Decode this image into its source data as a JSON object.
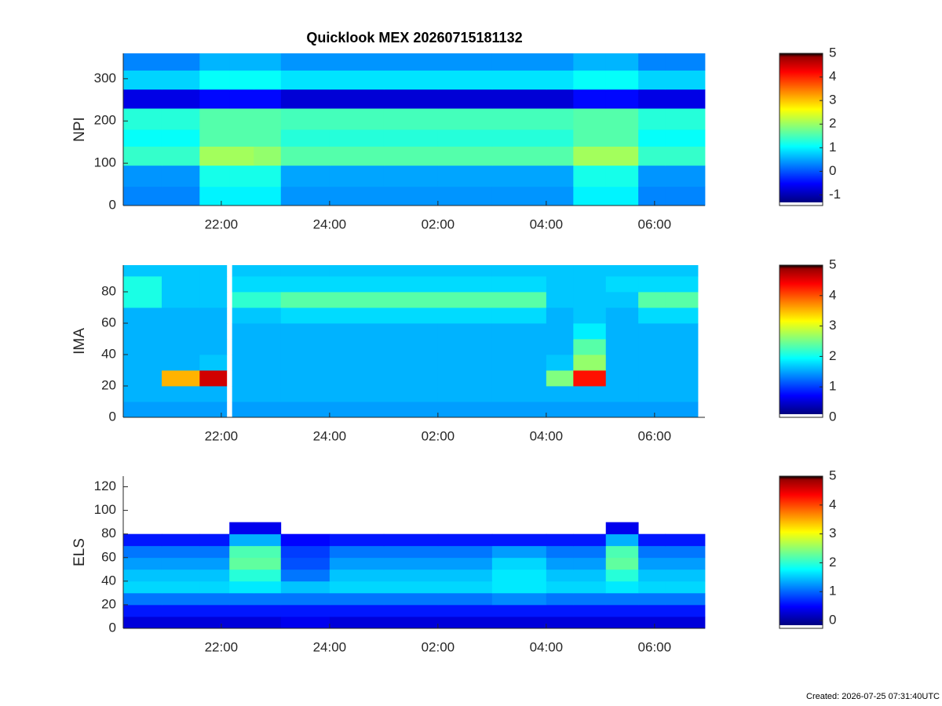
{
  "footnote": "Created: 2026-07-25 07:31:40UTC",
  "chart_data": [
    {
      "type": "heatmap",
      "title": "Quicklook MEX 20260715181132",
      "ylabel": "NPI",
      "colormap": "jet",
      "xlim": [
        20.19,
        30.93
      ],
      "ylim": [
        0,
        360
      ],
      "clim": [
        -1.45,
        5
      ],
      "xticks": [
        {
          "value": 22,
          "label": "22:00"
        },
        {
          "value": 24,
          "label": "24:00"
        },
        {
          "value": 26,
          "label": "02:00"
        },
        {
          "value": 28,
          "label": "04:00"
        },
        {
          "value": 30,
          "label": "06:00"
        }
      ],
      "yticks": [
        0,
        100,
        200,
        300
      ],
      "cticks": [
        -1,
        0,
        1,
        2,
        3,
        4,
        5
      ],
      "x_bins": [
        20.19,
        20.9,
        21.6,
        22.15,
        22.6,
        23.1,
        24,
        25,
        26,
        27,
        28,
        28.5,
        29.1,
        29.7,
        30.2,
        30.93
      ],
      "y_bins": [
        0,
        45,
        95,
        140,
        180,
        230,
        275,
        320,
        360
      ],
      "z": [
        [
          0.2,
          0.2,
          0.9,
          0.9,
          0.9,
          0.3,
          0.3,
          0.3,
          0.3,
          0.3,
          0.3,
          0.9,
          0.9,
          0.2,
          0.2
        ],
        [
          0.3,
          0.3,
          1.1,
          1.1,
          1.1,
          0.4,
          0.4,
          0.4,
          0.4,
          0.4,
          0.4,
          1.1,
          1.1,
          0.3,
          0.3
        ],
        [
          1.3,
          1.3,
          2.0,
          2.0,
          1.9,
          1.5,
          1.5,
          1.5,
          1.5,
          1.5,
          1.5,
          2.0,
          2.0,
          1.3,
          1.3
        ],
        [
          1.0,
          1.0,
          1.5,
          1.5,
          1.5,
          1.2,
          1.2,
          1.2,
          1.2,
          1.2,
          1.2,
          1.5,
          1.5,
          1.0,
          1.0
        ],
        [
          1.2,
          1.2,
          1.5,
          1.5,
          1.5,
          1.4,
          1.4,
          1.4,
          1.4,
          1.4,
          1.4,
          1.5,
          1.5,
          1.2,
          1.2
        ],
        [
          -0.8,
          -0.8,
          -0.6,
          -0.6,
          -0.6,
          -0.9,
          -0.9,
          -0.9,
          -0.9,
          -0.9,
          -0.9,
          -0.6,
          -0.6,
          -0.8,
          -0.8
        ],
        [
          0.7,
          0.7,
          1.0,
          1.0,
          1.0,
          0.8,
          0.8,
          0.8,
          0.8,
          0.8,
          0.8,
          1.0,
          1.0,
          0.7,
          0.7
        ],
        [
          0.2,
          0.2,
          0.5,
          0.5,
          0.5,
          0.3,
          0.3,
          0.3,
          0.3,
          0.3,
          0.3,
          0.5,
          0.5,
          0.2,
          0.2
        ]
      ]
    },
    {
      "type": "heatmap",
      "ylabel": "IMA",
      "colormap": "jet",
      "xlim": [
        20.19,
        30.93
      ],
      "ylim": [
        0,
        97
      ],
      "clim": [
        0,
        5
      ],
      "xticks": [
        {
          "value": 22,
          "label": "22:00"
        },
        {
          "value": 24,
          "label": "24:00"
        },
        {
          "value": 26,
          "label": "02:00"
        },
        {
          "value": 28,
          "label": "04:00"
        },
        {
          "value": 30,
          "label": "06:00"
        }
      ],
      "yticks": [
        0,
        20,
        40,
        60,
        80
      ],
      "cticks": [
        0,
        1,
        2,
        3,
        4,
        5
      ],
      "x_bins": [
        20.19,
        20.9,
        21.6,
        22.1,
        22.2,
        23.1,
        24,
        25,
        26,
        27,
        28,
        28.5,
        29.1,
        29.7,
        30.2,
        30.8
      ],
      "y_bins": [
        0,
        10,
        20,
        30,
        40,
        50,
        60,
        70,
        80,
        90,
        97
      ],
      "z": [
        [
          1.4,
          1.4,
          1.4,
          null,
          1.4,
          1.4,
          1.4,
          1.4,
          1.4,
          1.4,
          1.4,
          1.4,
          1.4,
          1.4,
          1.4
        ],
        [
          1.5,
          1.5,
          1.5,
          null,
          1.5,
          1.5,
          1.5,
          1.5,
          1.5,
          1.5,
          1.5,
          1.5,
          1.5,
          1.5,
          1.5
        ],
        [
          1.5,
          3.5,
          4.6,
          null,
          1.5,
          1.5,
          1.5,
          1.5,
          1.5,
          1.5,
          2.5,
          4.3,
          1.5,
          1.5,
          1.5
        ],
        [
          1.5,
          1.5,
          1.6,
          null,
          1.5,
          1.5,
          1.5,
          1.5,
          1.5,
          1.5,
          1.6,
          2.6,
          1.5,
          1.5,
          1.5
        ],
        [
          1.5,
          1.5,
          1.5,
          null,
          1.5,
          1.5,
          1.5,
          1.5,
          1.5,
          1.5,
          1.5,
          2.3,
          1.5,
          1.5,
          1.5
        ],
        [
          1.5,
          1.5,
          1.5,
          null,
          1.5,
          1.5,
          1.5,
          1.5,
          1.5,
          1.5,
          1.5,
          1.8,
          1.5,
          1.5,
          1.5
        ],
        [
          1.5,
          1.5,
          1.5,
          null,
          1.6,
          1.7,
          1.7,
          1.7,
          1.7,
          1.7,
          1.5,
          1.6,
          1.5,
          1.7,
          1.7
        ],
        [
          2.0,
          1.6,
          1.6,
          null,
          2.1,
          2.3,
          2.3,
          2.3,
          2.3,
          2.3,
          1.6,
          1.6,
          1.6,
          2.3,
          2.3
        ],
        [
          2.0,
          1.6,
          1.6,
          null,
          1.7,
          1.7,
          1.7,
          1.7,
          1.7,
          1.7,
          1.6,
          1.6,
          1.7,
          1.7,
          1.7
        ],
        [
          1.6,
          1.6,
          1.6,
          null,
          1.6,
          1.6,
          1.6,
          1.6,
          1.6,
          1.6,
          1.6,
          1.6,
          1.6,
          1.6,
          1.6
        ]
      ]
    },
    {
      "type": "heatmap",
      "ylabel": "ELS",
      "colormap": "jet",
      "xlim": [
        20.19,
        30.93
      ],
      "ylim": [
        0,
        129
      ],
      "clim": [
        -0.27,
        5
      ],
      "xticks": [
        {
          "value": 22,
          "label": "22:00"
        },
        {
          "value": 24,
          "label": "24:00"
        },
        {
          "value": 26,
          "label": "02:00"
        },
        {
          "value": 28,
          "label": "04:00"
        },
        {
          "value": 30,
          "label": "06:00"
        }
      ],
      "yticks": [
        0,
        20,
        40,
        60,
        80,
        100,
        120
      ],
      "cticks": [
        0,
        1,
        2,
        3,
        4,
        5
      ],
      "x_bins": [
        20.19,
        20.9,
        21.6,
        22.15,
        22.6,
        23.1,
        24,
        25,
        26,
        27,
        28,
        28.5,
        29.1,
        29.7,
        30.2,
        30.93
      ],
      "y_bins": [
        0,
        10,
        20,
        30,
        40,
        50,
        60,
        70,
        80,
        90,
        100,
        110,
        120,
        129
      ],
      "z": [
        [
          0.2,
          0.2,
          0.2,
          0.2,
          0.2,
          0.3,
          0.2,
          0.2,
          0.2,
          0.2,
          0.2,
          0.2,
          0.2,
          0.2,
          0.2
        ],
        [
          0.5,
          0.5,
          0.5,
          0.5,
          0.5,
          0.5,
          0.5,
          0.5,
          0.5,
          0.5,
          0.5,
          0.5,
          0.5,
          0.5,
          0.5
        ],
        [
          1.0,
          1.0,
          1.0,
          1.0,
          1.0,
          1.0,
          1.0,
          1.0,
          1.0,
          1.1,
          1.0,
          1.0,
          1.0,
          1.0,
          1.0
        ],
        [
          1.5,
          1.5,
          1.5,
          1.6,
          1.6,
          1.4,
          1.5,
          1.5,
          1.5,
          1.6,
          1.5,
          1.5,
          1.6,
          1.5,
          1.5
        ],
        [
          1.4,
          1.4,
          1.4,
          1.9,
          1.9,
          1.0,
          1.4,
          1.4,
          1.4,
          1.6,
          1.4,
          1.4,
          1.9,
          1.4,
          1.4
        ],
        [
          1.2,
          1.2,
          1.2,
          2.2,
          2.2,
          0.8,
          1.2,
          1.2,
          1.2,
          1.5,
          1.2,
          1.2,
          2.2,
          1.2,
          1.2
        ],
        [
          1.0,
          1.0,
          1.0,
          2.1,
          2.1,
          0.7,
          1.0,
          1.0,
          1.0,
          1.2,
          1.0,
          1.0,
          2.1,
          1.0,
          1.0
        ],
        [
          0.5,
          0.5,
          0.5,
          1.3,
          1.3,
          0.4,
          0.5,
          0.5,
          0.5,
          0.5,
          0.5,
          0.5,
          1.3,
          0.5,
          0.5
        ],
        [
          null,
          null,
          null,
          0.3,
          0.3,
          null,
          null,
          null,
          null,
          null,
          null,
          null,
          0.3,
          null,
          null
        ],
        [
          null,
          null,
          null,
          null,
          null,
          null,
          null,
          null,
          null,
          null,
          null,
          null,
          null,
          null,
          null
        ],
        [
          null,
          null,
          null,
          null,
          null,
          null,
          null,
          null,
          null,
          null,
          null,
          null,
          null,
          null,
          null
        ],
        [
          null,
          null,
          null,
          null,
          null,
          null,
          null,
          null,
          null,
          null,
          null,
          null,
          null,
          null,
          null
        ],
        [
          null,
          null,
          null,
          null,
          null,
          null,
          null,
          null,
          null,
          null,
          null,
          null,
          null,
          null,
          null
        ]
      ]
    }
  ]
}
